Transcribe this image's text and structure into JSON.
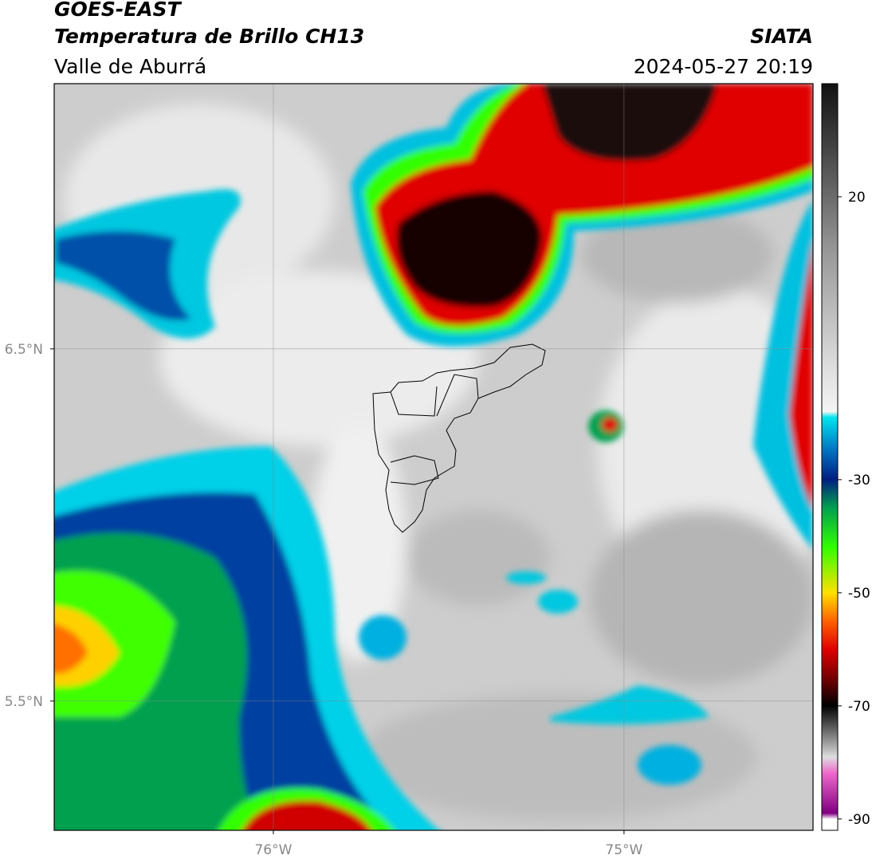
{
  "header": {
    "title": "GOES-EAST",
    "subtitle": "Temperatura de Brillo CH13",
    "region": "Valle de Aburrá",
    "source": "SIATA",
    "datetime": "2024-05-27 20:19"
  },
  "map": {
    "lon_lim": [
      -76.625,
      -74.461
    ],
    "lat_lim": [
      5.133,
      7.253
    ],
    "grid": true,
    "lat_ticks": [
      {
        "value": 6.5,
        "label": "6.5°N"
      },
      {
        "value": 5.5,
        "label": "5.5°N"
      }
    ],
    "lon_ticks": [
      {
        "value": -76,
        "label": "76°W"
      },
      {
        "value": -75,
        "label": "75°W"
      }
    ]
  },
  "colorbar": {
    "lim": [
      -92,
      40
    ],
    "ticks": [
      20,
      -30,
      -50,
      -70,
      -90
    ]
  }
}
